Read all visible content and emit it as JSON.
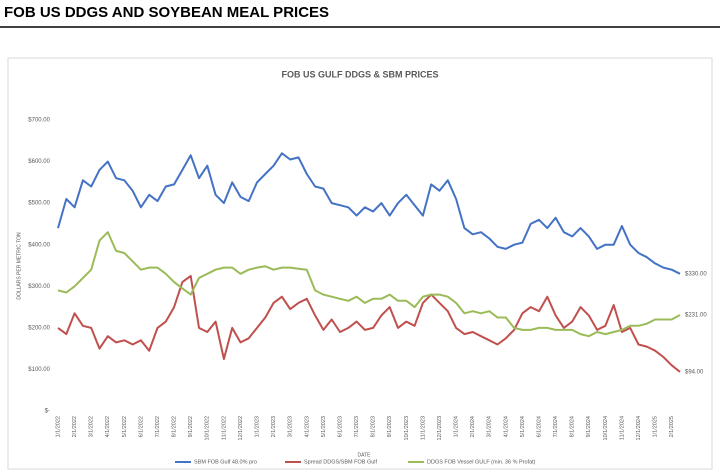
{
  "header": {
    "title": "FOB US DDGS AND SOYBEAN MEAL PRICES"
  },
  "chart_data": {
    "type": "line",
    "title": "FOB US GULF DDGS & SBM PRICES",
    "y_label": "DOLLARS PER METRIC TON",
    "x_label": "DATE",
    "categories": [
      "1/1/2022",
      null,
      "2/1/2022",
      null,
      "3/1/2022",
      null,
      "4/1/2022",
      null,
      "5/1/2022",
      null,
      "6/1/2022",
      null,
      "7/1/2022",
      null,
      "8/1/2022",
      null,
      "9/1/2022",
      null,
      "10/1/2022",
      null,
      "11/1/2022",
      null,
      "12/1/2022",
      null,
      "1/1/2023",
      null,
      "2/1/2023",
      null,
      "3/1/2023",
      null,
      "4/1/2023",
      null,
      "5/1/2023",
      null,
      "6/1/2023",
      null,
      "7/1/2023",
      null,
      "8/1/2023",
      null,
      "9/1/2023",
      null,
      "10/1/2023",
      null,
      "11/1/2023",
      null,
      "12/1/2023",
      null,
      "1/1/2024",
      null,
      "2/1/2024",
      null,
      "3/1/2024",
      null,
      "4/1/2024",
      null,
      "5/1/2024",
      null,
      "6/1/2024",
      null,
      "7/1/2024",
      null,
      "8/1/2024",
      null,
      "9/1/2024",
      null,
      "10/1/2024",
      null,
      "11/1/2024",
      null,
      "12/1/2024",
      null,
      "1/1/2025",
      null,
      "2/1/2025",
      null
    ],
    "series": [
      {
        "name": "SBM FOB Gulf 48.0% pro",
        "color": "#4472c4",
        "end_label": "$330.00",
        "values": [
          440,
          510,
          490,
          555,
          540,
          580,
          600,
          560,
          555,
          530,
          490,
          520,
          505,
          540,
          545,
          580,
          615,
          560,
          590,
          520,
          500,
          550,
          515,
          505,
          550,
          570,
          590,
          620,
          605,
          610,
          570,
          540,
          535,
          500,
          495,
          490,
          470,
          490,
          480,
          500,
          470,
          500,
          520,
          495,
          470,
          545,
          530,
          555,
          510,
          440,
          425,
          430,
          415,
          395,
          390,
          400,
          405,
          450,
          460,
          440,
          465,
          430,
          420,
          440,
          420,
          390,
          400,
          400,
          445,
          400,
          380,
          370,
          355,
          345,
          340,
          330
        ]
      },
      {
        "name": "Spread DDGS/SBM FOB Gulf",
        "color": "#c0504d",
        "end_label": "$94.00",
        "values": [
          200,
          185,
          235,
          205,
          200,
          150,
          180,
          165,
          170,
          160,
          170,
          145,
          200,
          215,
          250,
          310,
          325,
          200,
          190,
          215,
          125,
          200,
          165,
          175,
          200,
          225,
          260,
          275,
          245,
          260,
          270,
          230,
          195,
          220,
          190,
          200,
          215,
          195,
          200,
          230,
          250,
          200,
          215,
          205,
          260,
          280,
          260,
          240,
          200,
          185,
          190,
          180,
          170,
          160,
          175,
          195,
          235,
          250,
          240,
          275,
          230,
          200,
          215,
          250,
          230,
          195,
          205,
          255,
          190,
          200,
          160,
          155,
          145,
          130,
          110,
          94
        ]
      },
      {
        "name": "DDGS FOB Vessel GULF  (min. 36 % Profat)",
        "color": "#9bbb59",
        "end_label": "$231.00",
        "values": [
          290,
          285,
          300,
          320,
          340,
          410,
          430,
          385,
          380,
          360,
          340,
          345,
          345,
          330,
          310,
          295,
          280,
          320,
          330,
          340,
          345,
          345,
          330,
          340,
          345,
          348,
          340,
          345,
          345,
          342,
          340,
          290,
          280,
          275,
          270,
          265,
          275,
          260,
          270,
          270,
          280,
          265,
          265,
          250,
          275,
          280,
          280,
          275,
          260,
          235,
          240,
          235,
          240,
          225,
          225,
          200,
          195,
          195,
          200,
          200,
          195,
          195,
          195,
          185,
          180,
          190,
          185,
          190,
          195,
          205,
          205,
          210,
          220,
          220,
          220,
          231
        ]
      }
    ],
    "ylim": [
      0,
      700
    ],
    "yticks": [
      {
        "value": 0,
        "label": "$-"
      },
      {
        "value": 100,
        "label": "$100.00"
      },
      {
        "value": 200,
        "label": "$200.00"
      },
      {
        "value": 300,
        "label": "$300.00"
      },
      {
        "value": 400,
        "label": "$400.00"
      },
      {
        "value": 500,
        "label": "$500.00"
      },
      {
        "value": 600,
        "label": "$600.00"
      },
      {
        "value": 700,
        "label": "$700.00"
      }
    ],
    "grid": false,
    "legend": "bottom"
  }
}
